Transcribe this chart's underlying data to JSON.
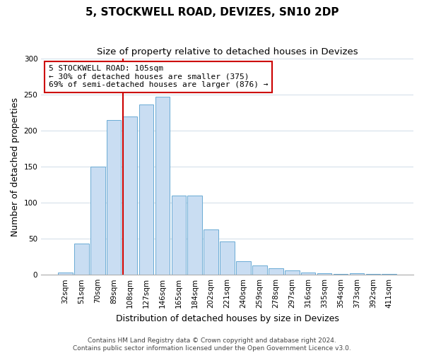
{
  "title": "5, STOCKWELL ROAD, DEVIZES, SN10 2DP",
  "subtitle": "Size of property relative to detached houses in Devizes",
  "xlabel": "Distribution of detached houses by size in Devizes",
  "ylabel": "Number of detached properties",
  "categories": [
    "32sqm",
    "51sqm",
    "70sqm",
    "89sqm",
    "108sqm",
    "127sqm",
    "146sqm",
    "165sqm",
    "184sqm",
    "202sqm",
    "221sqm",
    "240sqm",
    "259sqm",
    "278sqm",
    "297sqm",
    "316sqm",
    "335sqm",
    "354sqm",
    "373sqm",
    "392sqm",
    "411sqm"
  ],
  "values": [
    3,
    43,
    150,
    215,
    220,
    236,
    247,
    110,
    110,
    63,
    46,
    19,
    13,
    9,
    6,
    3,
    2,
    1,
    2,
    1,
    1
  ],
  "bar_color": "#c9ddf2",
  "bar_edge_color": "#6aaad4",
  "vline_color": "#cc0000",
  "annotation_title": "5 STOCKWELL ROAD: 105sqm",
  "annotation_line1": "← 30% of detached houses are smaller (375)",
  "annotation_line2": "69% of semi-detached houses are larger (876) →",
  "annotation_box_color": "#ffffff",
  "annotation_box_edge_color": "#cc0000",
  "ylim": [
    0,
    300
  ],
  "yticks": [
    0,
    50,
    100,
    150,
    200,
    250,
    300
  ],
  "footer_line1": "Contains HM Land Registry data © Crown copyright and database right 2024.",
  "footer_line2": "Contains public sector information licensed under the Open Government Licence v3.0.",
  "title_fontsize": 11,
  "subtitle_fontsize": 9.5,
  "axis_label_fontsize": 9,
  "tick_fontsize": 7.5,
  "annotation_fontsize": 8,
  "footer_fontsize": 6.5
}
